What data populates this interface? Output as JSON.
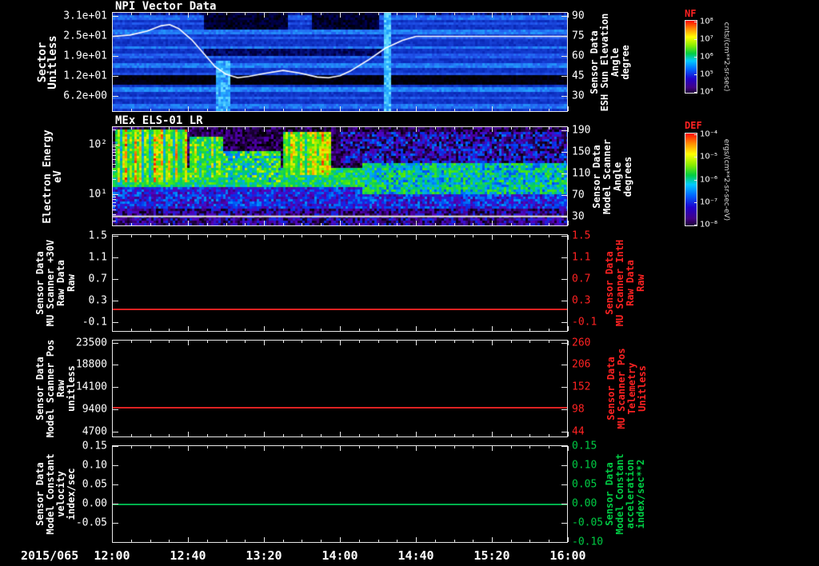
{
  "figure": {
    "date_label": "2015/065",
    "x_axis": {
      "start_hour": 12,
      "end_hour": 16,
      "tick_labels": [
        "12:00",
        "12:40",
        "13:20",
        "14:00",
        "14:40",
        "15:20",
        "16:00"
      ]
    },
    "colors": {
      "background": "#000000",
      "text": "#ffffff",
      "red": "#ff2222",
      "green": "#00cc44"
    },
    "colorbar_palette": [
      [
        0,
        "#1a0033"
      ],
      [
        0.08,
        "#440088"
      ],
      [
        0.2,
        "#2200cc"
      ],
      [
        0.33,
        "#0066ff"
      ],
      [
        0.45,
        "#00ccff"
      ],
      [
        0.55,
        "#00cc44"
      ],
      [
        0.66,
        "#88ee00"
      ],
      [
        0.78,
        "#ffff00"
      ],
      [
        0.9,
        "#ff8800"
      ],
      [
        1,
        "#ff1100"
      ]
    ]
  },
  "chart_data": [
    {
      "id": "npi-vector-data",
      "type": "heatmap",
      "title": "NPI Vector Data",
      "left_label_lines": [
        "Sector",
        "Unitless"
      ],
      "left_label_size": 14,
      "left_axis": {
        "min": 1.2,
        "max": 32.2,
        "ticks": [
          {
            "v": 31,
            "label": "3.1e+01"
          },
          {
            "v": 24.8,
            "label": "2.5e+01"
          },
          {
            "v": 18.6,
            "label": "1.9e+01"
          },
          {
            "v": 12.4,
            "label": "1.2e+01"
          },
          {
            "v": 6.2,
            "label": "6.2e+00"
          }
        ]
      },
      "right_label_lines": [
        "Sensor Data",
        "ESH Sun Elevation",
        "Angle",
        "degree"
      ],
      "right_axis": {
        "min": 18,
        "max": 93,
        "ticks": [
          {
            "v": 90,
            "label": "90"
          },
          {
            "v": 75,
            "label": "75"
          },
          {
            "v": 60,
            "label": "60"
          },
          {
            "v": 45,
            "label": "45"
          },
          {
            "v": 30,
            "label": "30"
          }
        ]
      },
      "colorbar": {
        "title": "NF",
        "units": "cnts/(cm**2-sr-sec)",
        "tick_labels": [
          "10⁸",
          "10⁷",
          "10⁶",
          "10⁵",
          "10⁴"
        ]
      },
      "overlay_line": {
        "name": "esh-sun-elevation-angle",
        "color": "#ffffff",
        "axis": "right",
        "points": [
          [
            12.0,
            75
          ],
          [
            12.15,
            76
          ],
          [
            12.3,
            79
          ],
          [
            12.42,
            83
          ],
          [
            12.5,
            84
          ],
          [
            12.58,
            81
          ],
          [
            12.7,
            72
          ],
          [
            12.8,
            62
          ],
          [
            12.9,
            52
          ],
          [
            13.0,
            46
          ],
          [
            13.1,
            43.5
          ],
          [
            13.2,
            44.5
          ],
          [
            13.35,
            47
          ],
          [
            13.5,
            49
          ],
          [
            13.65,
            47
          ],
          [
            13.8,
            44
          ],
          [
            13.9,
            43.5
          ],
          [
            14.0,
            45
          ],
          [
            14.1,
            49
          ],
          [
            14.25,
            57
          ],
          [
            14.4,
            66
          ],
          [
            14.55,
            72
          ],
          [
            14.67,
            75
          ],
          [
            15.0,
            75
          ],
          [
            15.5,
            75
          ],
          [
            16.0,
            75
          ]
        ]
      },
      "palette": [
        [
          0,
          "#000000"
        ],
        [
          0.18,
          "#000055"
        ],
        [
          0.4,
          "#0b2bbb"
        ],
        [
          0.62,
          "#2255ee"
        ],
        [
          0.8,
          "#22aaff"
        ],
        [
          1,
          "#99ffff"
        ]
      ],
      "texture": {
        "seed": 7,
        "base": 0.45,
        "noise": 0.07,
        "hstripes": [
          {
            "y": 0.02,
            "h": 0.05,
            "v": 0.66
          },
          {
            "y": 0.1,
            "h": 0.03,
            "v": 0.58
          },
          {
            "y": 0.16,
            "h": 0.05,
            "v": 0.7
          },
          {
            "y": 0.25,
            "h": 0.03,
            "v": 0.6
          },
          {
            "y": 0.33,
            "h": 0.04,
            "v": 0.68
          },
          {
            "y": 0.42,
            "h": 0.035,
            "v": 0.62
          },
          {
            "y": 0.52,
            "h": 0.04,
            "v": 0.7
          },
          {
            "y": 0.6,
            "h": 0.025,
            "v": 0.58
          },
          {
            "y": 0.76,
            "h": 0.045,
            "v": 0.72
          },
          {
            "y": 0.86,
            "h": 0.03,
            "v": 0.6
          },
          {
            "y": 0.93,
            "h": 0.05,
            "v": 0.68
          }
        ],
        "regions": [
          {
            "x": 0,
            "w": 1,
            "y": 0,
            "h": 0.025,
            "base": 0.3,
            "noise": 0.15
          },
          {
            "x": 0.2,
            "w": 0.185,
            "y": 0,
            "h": 0.17,
            "base": 0.1,
            "noise": 0.1
          },
          {
            "x": 0.437,
            "w": 0.145,
            "y": 0,
            "h": 0.17,
            "base": 0.1,
            "noise": 0.1
          },
          {
            "x": 0.2,
            "w": 0.39,
            "y": 0.36,
            "h": 0.09,
            "base": 0.2,
            "noise": 0.1
          },
          {
            "x": 0,
            "w": 1,
            "y": 0.63,
            "h": 0.1,
            "base": 0.03,
            "noise": 0.04
          },
          {
            "x": 0.225,
            "w": 0.035,
            "y": 0.48,
            "h": 0.52,
            "base": 0.8,
            "noise": 0.12
          },
          {
            "x": 0.595,
            "w": 0.015,
            "y": 0,
            "h": 1,
            "base": 0.85,
            "noise": 0.1
          }
        ]
      }
    },
    {
      "id": "mex-els",
      "type": "heatmap",
      "title": "MEx ELS-01 LR",
      "left_label_lines": [
        "Electron Energy",
        "eV"
      ],
      "left_label_size": 13,
      "left_axis": {
        "log": true,
        "min": 2.3,
        "max": 230,
        "ticks": [
          {
            "v": 100,
            "label": "10²"
          },
          {
            "v": 10,
            "label": "10¹"
          }
        ],
        "minor": [
          3,
          4,
          5,
          6,
          7,
          8,
          9,
          20,
          30,
          40,
          50,
          60,
          70,
          80,
          90,
          200
        ]
      },
      "right_label_lines": [
        "Sensor Data",
        "Model Scanner",
        "Angle",
        "degrees"
      ],
      "right_axis": {
        "min": 12,
        "max": 197,
        "ticks": [
          {
            "v": 190,
            "label": "190"
          },
          {
            "v": 150,
            "label": "150"
          },
          {
            "v": 110,
            "label": "110"
          },
          {
            "v": 70,
            "label": "70"
          },
          {
            "v": 30,
            "label": "30"
          }
        ]
      },
      "colorbar": {
        "title": "DEF",
        "units": "ergs/(cm**2-sr-sec-eV)",
        "tick_labels": [
          "10⁻⁴",
          "10⁻⁵",
          "10⁻⁶",
          "10⁻⁷",
          "10⁻⁸"
        ]
      },
      "palette": [
        [
          0,
          "#000000"
        ],
        [
          0.1,
          "#220044"
        ],
        [
          0.22,
          "#5500bb"
        ],
        [
          0.34,
          "#0033ee"
        ],
        [
          0.46,
          "#00aaff"
        ],
        [
          0.56,
          "#00cc66"
        ],
        [
          0.68,
          "#55ee00"
        ],
        [
          0.78,
          "#eeee00"
        ],
        [
          0.88,
          "#ff8800"
        ],
        [
          0.96,
          "#ff2200"
        ],
        [
          1,
          "#bb0000"
        ]
      ],
      "texture": {
        "seed": 13,
        "base": 0.1,
        "noise": 0.12,
        "hstripes": [],
        "regions": [
          {
            "x": 0,
            "w": 1,
            "y": 0.8,
            "h": 0.2,
            "base": 0.18,
            "noise": 0.16
          },
          {
            "x": 0,
            "w": 1,
            "y": 0.58,
            "h": 0.24,
            "base": 0.3,
            "noise": 0.14
          },
          {
            "x": 0,
            "w": 0.58,
            "y": 0.42,
            "h": 0.18,
            "base": 0.58,
            "noise": 0.12
          },
          {
            "x": 0.55,
            "w": 0.45,
            "y": 0.34,
            "h": 0.34,
            "base": 0.52,
            "noise": 0.16
          },
          {
            "x": 0.5,
            "w": 0.5,
            "y": 0.06,
            "h": 0.3,
            "base": 0.22,
            "noise": 0.2
          },
          {
            "x": 0.17,
            "w": 0.07,
            "y": 0.1,
            "h": 0.42,
            "base": 0.72,
            "noise": 0.15,
            "colnoise": 0.25
          },
          {
            "x": 0.005,
            "w": 0.16,
            "y": 0.03,
            "h": 0.52,
            "base": 0.86,
            "noise": 0.14,
            "colnoise": 0.45
          },
          {
            "x": 0.375,
            "w": 0.105,
            "y": 0.05,
            "h": 0.45,
            "base": 0.84,
            "noise": 0.14,
            "colnoise": 0.35
          },
          {
            "x": 0.24,
            "w": 0.13,
            "y": 0.25,
            "h": 0.3,
            "base": 0.58,
            "noise": 0.2
          }
        ],
        "bright_row": {
          "y": 0.9,
          "color": "#e8e8d8"
        }
      }
    },
    {
      "id": "mu-scanner-30v",
      "type": "line",
      "left_label_lines": [
        "Sensor Data",
        "MU Scanner +30V",
        "Raw Data",
        "Raw"
      ],
      "left_axis": {
        "min": -0.28,
        "max": 1.53,
        "ticks": [
          {
            "v": 1.5,
            "label": "1.5"
          },
          {
            "v": 1.1,
            "label": "1.1"
          },
          {
            "v": 0.7,
            "label": "0.7"
          },
          {
            "v": 0.3,
            "label": "0.3"
          },
          {
            "v": -0.1,
            "label": "-0.1"
          }
        ]
      },
      "right_label_lines": [
        "Sensor Data",
        "MU Scanner IntH",
        "Raw Data",
        "Raw"
      ],
      "right_label_color": "#ff2222",
      "right_axis": {
        "min": -0.28,
        "max": 1.53,
        "color": "#ff2222",
        "ticks": [
          {
            "v": 1.5,
            "label": "1.5"
          },
          {
            "v": 1.1,
            "label": "1.1"
          },
          {
            "v": 0.7,
            "label": "0.7"
          },
          {
            "v": 0.3,
            "label": "0.3"
          },
          {
            "v": -0.1,
            "label": "-0.1"
          }
        ]
      },
      "series": [
        {
          "name": "mu-scanner-30v-raw",
          "color": "#dd2222",
          "value": 0.15
        }
      ]
    },
    {
      "id": "model-scanner-pos",
      "type": "line",
      "left_label_lines": [
        "Sensor Data",
        "Model Scanner Pos",
        "Raw",
        "unitless"
      ],
      "left_axis": {
        "min": 3500,
        "max": 24100,
        "ticks": [
          {
            "v": 23500,
            "label": "23500"
          },
          {
            "v": 18800,
            "label": "18800"
          },
          {
            "v": 14100,
            "label": "14100"
          },
          {
            "v": 9400,
            "label": "9400"
          },
          {
            "v": 4700,
            "label": "4700"
          }
        ]
      },
      "right_label_lines": [
        "Sensor Data",
        "MU Scanner Pos",
        "Telemetry",
        "Unitless"
      ],
      "right_label_color": "#ff2222",
      "right_axis": {
        "min": 30,
        "max": 267,
        "color": "#ff2222",
        "ticks": [
          {
            "v": 260,
            "label": "260"
          },
          {
            "v": 206,
            "label": "206"
          },
          {
            "v": 152,
            "label": "152"
          },
          {
            "v": 98,
            "label": "98"
          },
          {
            "v": 44,
            "label": "44"
          }
        ]
      },
      "series": [
        {
          "name": "model-scanner-pos-raw",
          "color": "#dd2222",
          "value": 10000
        }
      ]
    },
    {
      "id": "model-constant-velocity",
      "type": "line",
      "left_label_lines": [
        "Sensor Data",
        "Model Constant",
        "velocity",
        "index/sec"
      ],
      "left_axis": {
        "min": -0.102,
        "max": 0.152,
        "ticks": [
          {
            "v": 0.15,
            "label": "0.15"
          },
          {
            "v": 0.1,
            "label": "0.10"
          },
          {
            "v": 0.05,
            "label": "0.05"
          },
          {
            "v": 0.0,
            "label": "0.00"
          },
          {
            "v": -0.05,
            "label": "-0.05"
          }
        ]
      },
      "right_label_lines": [
        "Sensor Data",
        "Model Constant",
        "acceleration",
        "index/sec**2"
      ],
      "right_label_color": "#00cc44",
      "right_axis": {
        "min": -0.102,
        "max": 0.152,
        "color": "#00cc44",
        "ticks": [
          {
            "v": 0.15,
            "label": "0.15"
          },
          {
            "v": 0.1,
            "label": "0.10"
          },
          {
            "v": 0.05,
            "label": "0.05"
          },
          {
            "v": 0.0,
            "label": "0.00"
          },
          {
            "v": -0.05,
            "label": "-0.05"
          },
          {
            "v": -0.1,
            "label": "-0.10"
          }
        ]
      },
      "series": [
        {
          "name": "model-constant-velocity",
          "color": "#00b04c",
          "value": 0.0
        }
      ]
    }
  ]
}
